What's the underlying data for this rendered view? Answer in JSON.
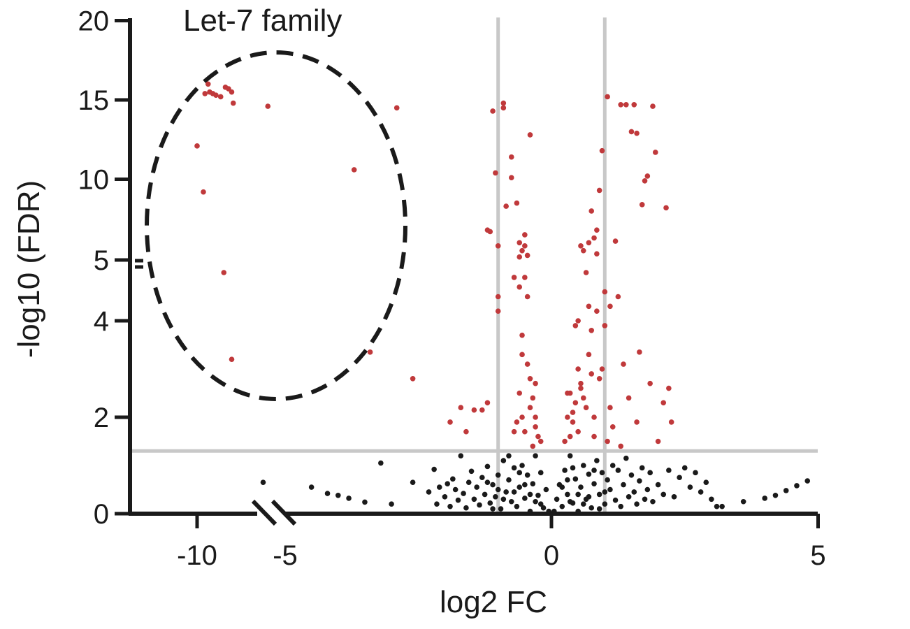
{
  "chart_data": {
    "type": "scatter",
    "title": "",
    "xlabel": "log2 FC",
    "ylabel": "-log10 (FDR)",
    "xlim": [
      -11.3,
      5
    ],
    "ylim": [
      0,
      20
    ],
    "x_broken_axis": true,
    "y_broken_axis": true,
    "x_ticks": [
      -10,
      -5,
      0,
      5
    ],
    "x_tick_labels": [
      "-10",
      "-5",
      "0",
      "5"
    ],
    "y_ticks": [
      0,
      2,
      4,
      5,
      10,
      15,
      20
    ],
    "y_tick_labels": [
      "0",
      "2",
      "4",
      "5",
      "10",
      "15",
      "20"
    ],
    "thresholds": {
      "fdr_neg_log10": 1.3,
      "log2fc": [
        -1,
        1
      ]
    },
    "annotation": {
      "label": "Let-7 family",
      "circled_region": "top-left"
    },
    "colors": {
      "significant": "#c0393b",
      "not_significant": "#1a1a1a",
      "threshold_lines": "#c8c8c8",
      "axis": "#1a1a1a"
    },
    "grid": false,
    "series": [
      {
        "color": "#c0393b",
        "points": [
          [
            -9.5,
            15.4
          ],
          [
            -9.3,
            16.0
          ],
          [
            -9.2,
            15.5
          ],
          [
            -9.0,
            15.4
          ],
          [
            -8.8,
            15.3
          ],
          [
            -8.5,
            15.2
          ],
          [
            -8.2,
            15.8
          ],
          [
            -8.0,
            15.7
          ],
          [
            -7.8,
            15.5
          ],
          [
            -7.7,
            14.8
          ],
          [
            -10.0,
            12.1
          ],
          [
            -9.6,
            9.2
          ],
          [
            -8.3,
            5.0
          ],
          [
            -7.8,
            3.2
          ],
          [
            -5.5,
            14.6
          ],
          [
            -3.7,
            10.6
          ],
          [
            -2.9,
            14.5
          ],
          [
            -3.4,
            3.35
          ],
          [
            -2.6,
            2.8
          ],
          [
            -1.9,
            1.9
          ],
          [
            -1.7,
            2.2
          ],
          [
            -1.6,
            1.7
          ],
          [
            -1.45,
            2.15
          ],
          [
            -1.3,
            2.15
          ],
          [
            -1.2,
            2.3
          ],
          [
            -1.2,
            6.8
          ],
          [
            -1.15,
            6.7
          ],
          [
            -1.1,
            14.3
          ],
          [
            -1.05,
            10.4
          ],
          [
            -1.0,
            5.8
          ],
          [
            -1.0,
            4.5
          ],
          [
            -1.0,
            4.2
          ],
          [
            -0.9,
            14.8
          ],
          [
            -0.9,
            14.5
          ],
          [
            -0.85,
            8.3
          ],
          [
            -0.75,
            10.1
          ],
          [
            -0.75,
            11.4
          ],
          [
            -0.7,
            4.9
          ],
          [
            -0.65,
            8.5
          ],
          [
            -0.6,
            6.0
          ],
          [
            -0.6,
            4.7
          ],
          [
            -0.55,
            3.7
          ],
          [
            -0.55,
            3.3
          ],
          [
            -0.5,
            6.5
          ],
          [
            -0.5,
            5.8
          ],
          [
            -0.45,
            4.5
          ],
          [
            -0.45,
            3.1
          ],
          [
            -0.4,
            12.8
          ],
          [
            -0.4,
            2.8
          ],
          [
            -0.35,
            2.4
          ],
          [
            -0.3,
            2.0
          ],
          [
            -0.3,
            1.8
          ],
          [
            -0.25,
            1.6
          ],
          [
            -0.2,
            1.5
          ],
          [
            -0.55,
            2.0
          ],
          [
            -0.6,
            2.5
          ],
          [
            -0.65,
            1.9
          ],
          [
            -0.7,
            1.7
          ],
          [
            -0.5,
            1.7
          ],
          [
            -0.4,
            2.2
          ],
          [
            -0.35,
            1.4
          ],
          [
            -0.3,
            2.7
          ],
          [
            -0.5,
            4.9
          ],
          [
            -0.45,
            5.2
          ],
          [
            -0.55,
            5.5
          ],
          [
            -0.6,
            5.1
          ],
          [
            0.25,
            1.5
          ],
          [
            0.3,
            2.0
          ],
          [
            0.35,
            2.5
          ],
          [
            0.4,
            1.9
          ],
          [
            0.45,
            2.3
          ],
          [
            0.45,
            3.9
          ],
          [
            0.5,
            1.7
          ],
          [
            0.5,
            4.0
          ],
          [
            0.55,
            2.6
          ],
          [
            0.55,
            5.8
          ],
          [
            0.6,
            5.5
          ],
          [
            0.65,
            2.2
          ],
          [
            0.7,
            3.3
          ],
          [
            0.7,
            4.3
          ],
          [
            0.75,
            3.8
          ],
          [
            0.75,
            8.0
          ],
          [
            0.8,
            2.0
          ],
          [
            0.8,
            6.3
          ],
          [
            0.85,
            5.3
          ],
          [
            0.85,
            6.8
          ],
          [
            0.9,
            2.8
          ],
          [
            0.9,
            9.3
          ],
          [
            0.95,
            3.0
          ],
          [
            0.95,
            11.8
          ],
          [
            1.0,
            4.6
          ],
          [
            1.0,
            3.9
          ],
          [
            1.05,
            1.5
          ],
          [
            1.05,
            15.2
          ],
          [
            1.1,
            2.2
          ],
          [
            1.1,
            4.3
          ],
          [
            1.15,
            1.8
          ],
          [
            1.2,
            6.1
          ],
          [
            1.25,
            4.5
          ],
          [
            1.3,
            1.4
          ],
          [
            1.3,
            14.7
          ],
          [
            1.35,
            3.1
          ],
          [
            1.4,
            14.7
          ],
          [
            1.45,
            2.4
          ],
          [
            1.5,
            13.0
          ],
          [
            1.55,
            14.7
          ],
          [
            1.6,
            1.9
          ],
          [
            1.6,
            12.9
          ],
          [
            1.65,
            3.35
          ],
          [
            1.7,
            8.4
          ],
          [
            1.75,
            9.9
          ],
          [
            1.8,
            10.2
          ],
          [
            1.85,
            2.7
          ],
          [
            1.9,
            14.6
          ],
          [
            1.95,
            11.7
          ],
          [
            2.0,
            1.5
          ],
          [
            2.1,
            2.3
          ],
          [
            2.15,
            8.2
          ],
          [
            2.2,
            2.6
          ],
          [
            2.25,
            1.9
          ],
          [
            0.6,
            2.4
          ],
          [
            0.65,
            5.0
          ],
          [
            0.7,
            6.0
          ],
          [
            0.75,
            2.9
          ],
          [
            0.8,
            1.6
          ],
          [
            0.85,
            4.2
          ],
          [
            0.4,
            2.1
          ],
          [
            0.35,
            1.6
          ],
          [
            0.5,
            3.0
          ],
          [
            0.55,
            2.7
          ],
          [
            0.3,
            2.5
          ]
        ]
      },
      {
        "color": "#1a1a1a",
        "points": [
          [
            -5.8,
            0.65
          ],
          [
            -4.5,
            0.55
          ],
          [
            -4.2,
            0.42
          ],
          [
            -4.0,
            0.38
          ],
          [
            -3.8,
            0.32
          ],
          [
            -3.5,
            0.24
          ],
          [
            -3.2,
            1.05
          ],
          [
            -3.0,
            0.2
          ],
          [
            -2.6,
            0.65
          ],
          [
            -2.3,
            0.45
          ],
          [
            -2.2,
            0.92
          ],
          [
            -2.15,
            0.2
          ],
          [
            -2.1,
            0.55
          ],
          [
            -2.0,
            0.35
          ],
          [
            -1.95,
            0.62
          ],
          [
            -1.9,
            0.15
          ],
          [
            -1.85,
            0.72
          ],
          [
            -1.8,
            0.5
          ],
          [
            -1.75,
            0.28
          ],
          [
            -1.7,
            1.2
          ],
          [
            -1.65,
            0.42
          ],
          [
            -1.6,
            0.12
          ],
          [
            -1.55,
            0.65
          ],
          [
            -1.5,
            0.88
          ],
          [
            -1.45,
            0.3
          ],
          [
            -1.4,
            0.55
          ],
          [
            -1.35,
            0.18
          ],
          [
            -1.3,
            0.75
          ],
          [
            -1.25,
            0.4
          ],
          [
            -1.2,
            0.98
          ],
          [
            -1.15,
            0.22
          ],
          [
            -1.1,
            0.6
          ],
          [
            -1.05,
            0.35
          ],
          [
            -1.0,
            0.8
          ],
          [
            -0.95,
            0.1
          ],
          [
            -0.9,
            1.1
          ],
          [
            -0.85,
            0.45
          ],
          [
            -0.8,
            0.7
          ],
          [
            -0.75,
            0.25
          ],
          [
            -0.7,
            0.95
          ],
          [
            -0.65,
            0.15
          ],
          [
            -0.6,
            0.55
          ],
          [
            -0.55,
            1.0
          ],
          [
            -0.5,
            0.32
          ],
          [
            -0.45,
            0.8
          ],
          [
            -0.4,
            0.05
          ],
          [
            -0.35,
            0.62
          ],
          [
            -0.3,
            1.2
          ],
          [
            -0.25,
            0.38
          ],
          [
            -0.2,
            0.85
          ],
          [
            -0.15,
            0.12
          ],
          [
            -0.1,
            0.5
          ],
          [
            -0.05,
            0.05
          ],
          [
            -0.7,
            0.45
          ],
          [
            -0.9,
            0.3
          ],
          [
            -1.1,
            0.1
          ],
          [
            -0.5,
            0.6
          ],
          [
            -0.3,
            0.25
          ],
          [
            -0.6,
            0.85
          ],
          [
            -0.8,
            1.2
          ],
          [
            -1.0,
            0.5
          ],
          [
            -1.2,
            0.65
          ],
          [
            -0.4,
            0.4
          ],
          [
            -0.2,
            0.2
          ],
          [
            0.05,
            0.05
          ],
          [
            0.1,
            0.3
          ],
          [
            0.15,
            0.6
          ],
          [
            0.2,
            0.15
          ],
          [
            0.25,
            0.9
          ],
          [
            0.3,
            0.4
          ],
          [
            0.35,
            1.2
          ],
          [
            0.4,
            0.22
          ],
          [
            0.45,
            0.72
          ],
          [
            0.5,
            0.05
          ],
          [
            0.55,
            0.55
          ],
          [
            0.6,
            1.0
          ],
          [
            0.65,
            0.3
          ],
          [
            0.7,
            0.82
          ],
          [
            0.75,
            0.12
          ],
          [
            0.8,
            0.62
          ],
          [
            0.85,
            1.1
          ],
          [
            0.9,
            0.4
          ],
          [
            0.95,
            0.85
          ],
          [
            1.0,
            0.2
          ],
          [
            1.05,
            0.7
          ],
          [
            1.1,
            0.5
          ],
          [
            1.15,
            1.0
          ],
          [
            1.2,
            0.28
          ],
          [
            1.25,
            0.9
          ],
          [
            1.3,
            0.15
          ],
          [
            1.35,
            0.6
          ],
          [
            1.4,
            1.15
          ],
          [
            1.45,
            0.35
          ],
          [
            1.5,
            0.8
          ],
          [
            1.55,
            0.45
          ],
          [
            1.6,
            0.2
          ],
          [
            1.65,
            0.68
          ],
          [
            1.7,
            0.95
          ],
          [
            1.75,
            0.3
          ],
          [
            1.8,
            0.5
          ],
          [
            1.85,
            0.85
          ],
          [
            1.9,
            0.25
          ],
          [
            2.0,
            0.6
          ],
          [
            2.1,
            0.4
          ],
          [
            2.2,
            0.9
          ],
          [
            2.3,
            0.35
          ],
          [
            2.4,
            0.75
          ],
          [
            2.5,
            0.95
          ],
          [
            2.6,
            0.55
          ],
          [
            2.7,
            0.85
          ],
          [
            2.8,
            0.45
          ],
          [
            2.9,
            0.65
          ],
          [
            3.0,
            0.3
          ],
          [
            3.1,
            0.15
          ],
          [
            3.2,
            0.15
          ],
          [
            3.6,
            0.25
          ],
          [
            4.0,
            0.32
          ],
          [
            4.2,
            0.38
          ],
          [
            4.4,
            0.48
          ],
          [
            4.6,
            0.58
          ],
          [
            4.8,
            0.68
          ],
          [
            0.3,
            0.7
          ],
          [
            0.5,
            0.4
          ],
          [
            0.7,
            0.35
          ],
          [
            0.9,
            0.1
          ],
          [
            0.4,
            0.95
          ],
          [
            0.6,
            0.2
          ],
          [
            0.8,
            0.9
          ],
          [
            1.0,
            0.45
          ],
          [
            0.2,
            0.55
          ],
          [
            0.35,
            0.25
          ]
        ]
      }
    ]
  }
}
